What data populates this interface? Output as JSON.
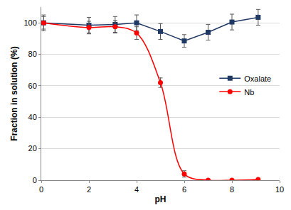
{
  "chart_data": {
    "type": "line",
    "x_label": "pH",
    "y_label": "Fraction in solution (%)",
    "xlim": [
      0,
      10
    ],
    "xticks": [
      0,
      2,
      4,
      6,
      8,
      10
    ],
    "ylim": [
      0,
      110
    ],
    "yticks": [
      0,
      20,
      40,
      60,
      80,
      100
    ],
    "grid": true,
    "legend": "right",
    "series": [
      {
        "name": "Oxalate",
        "color": "#1f3864",
        "marker": "square",
        "line_style": "solid",
        "x": [
          0.1,
          2,
          3.1,
          4,
          5,
          6,
          7,
          8,
          9.1
        ],
        "values": [
          100,
          98.5,
          99,
          100,
          94.5,
          88.5,
          94,
          100.5,
          103.5
        ],
        "errors": [
          5,
          5,
          5,
          5,
          5,
          4,
          5,
          5,
          5
        ]
      },
      {
        "name": "Nb",
        "color": "#ff0000",
        "marker": "circle",
        "line_style": "smooth",
        "x": [
          0.1,
          2,
          3.1,
          4,
          5,
          6,
          7,
          8,
          9.1
        ],
        "values": [
          100,
          97,
          97.5,
          93.5,
          62,
          4,
          0,
          0,
          0.5
        ],
        "errors": [
          4,
          4,
          4,
          4,
          3,
          2,
          0,
          0,
          0
        ]
      }
    ]
  }
}
